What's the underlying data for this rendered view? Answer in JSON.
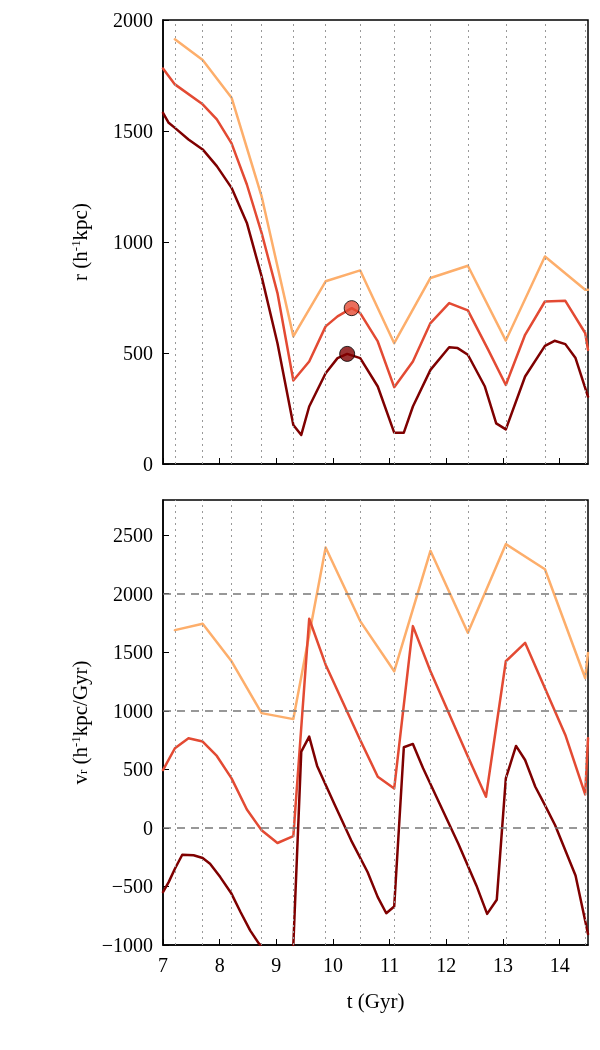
{
  "chart_data": [
    {
      "type": "line",
      "ylabel": "r (h$^{-1}$kpc)",
      "xlim": [
        7,
        14.5
      ],
      "xticks": [
        7,
        8,
        9,
        10,
        11,
        12,
        13,
        14
      ],
      "ylim": [
        0,
        2000
      ],
      "yticks": [
        0,
        500,
        1000,
        1500,
        2000
      ],
      "tick_labels": "y",
      "grid": false,
      "marker": "none",
      "line_style": "solid",
      "series": [
        {
          "color": "#fdae6b",
          "x": [
            7.21,
            7.7,
            8.21,
            8.74,
            9.3,
            9.87,
            10.48,
            11.08,
            11.72,
            12.38,
            13.05,
            13.74,
            14.45,
            14.5
          ],
          "values": [
            1913,
            1820,
            1650,
            1206,
            575,
            823,
            872,
            544,
            838,
            893,
            556,
            935,
            785,
            785
          ]
        },
        {
          "color": "#e34a33",
          "x": [
            7.0,
            7.21,
            7.7,
            7.95,
            8.21,
            8.48,
            8.74,
            9.02,
            9.3,
            9.58,
            9.87,
            10.08,
            10.33,
            10.48,
            10.79,
            11.08,
            11.41,
            11.72,
            12.05,
            12.38,
            12.74,
            13.05,
            13.39,
            13.74,
            14.1,
            14.45,
            14.5
          ],
          "values": [
            1781,
            1710,
            1620,
            1552,
            1444,
            1259,
            1041,
            770,
            376,
            462,
            620,
            665,
            702,
            680,
            552,
            346,
            462,
            635,
            725,
            692,
            514,
            356,
            582,
            732,
            735,
            590,
            514
          ]
        },
        {
          "color": "#7f0000",
          "x": [
            7.0,
            7.1,
            7.21,
            7.45,
            7.7,
            7.95,
            8.21,
            8.48,
            8.74,
            9.02,
            9.3,
            9.44,
            9.58,
            9.87,
            10.08,
            10.25,
            10.48,
            10.79,
            11.08,
            11.25,
            11.41,
            11.72,
            12.05,
            12.2,
            12.38,
            12.68,
            12.88,
            13.05,
            13.39,
            13.74,
            13.91,
            14.1,
            14.28,
            14.5
          ],
          "values": [
            1582,
            1537,
            1514,
            1462,
            1417,
            1342,
            1244,
            1086,
            845,
            544,
            176,
            131,
            259,
            409,
            477,
            496,
            477,
            349,
            141,
            141,
            259,
            424,
            526,
            522,
            492,
            349,
            183,
            156,
            394,
            532,
            555,
            540,
            477,
            304
          ]
        },
        {
          "type": "scatter",
          "marker": "circle",
          "color": "#e34a33",
          "x": [
            10.33
          ],
          "values": [
            702
          ]
        },
        {
          "type": "scatter",
          "marker": "circle",
          "color": "#7f0000",
          "x": [
            10.25
          ],
          "values": [
            496
          ]
        }
      ],
      "ref_lines": [
        {
          "axis": "x",
          "value": 7.21,
          "line_style": "dotted",
          "color": "#999999"
        },
        {
          "axis": "x",
          "value": 7.7,
          "line_style": "dotted",
          "color": "#999999"
        },
        {
          "axis": "x",
          "value": 8.21,
          "line_style": "dotted",
          "color": "#999999"
        },
        {
          "axis": "x",
          "value": 8.74,
          "line_style": "dotted",
          "color": "#999999"
        },
        {
          "axis": "x",
          "value": 9.3,
          "line_style": "dotted",
          "color": "#999999"
        },
        {
          "axis": "x",
          "value": 9.87,
          "line_style": "dotted",
          "color": "#999999"
        },
        {
          "axis": "x",
          "value": 10.48,
          "line_style": "dotted",
          "color": "#999999"
        },
        {
          "axis": "x",
          "value": 11.08,
          "line_style": "dotted",
          "color": "#999999"
        },
        {
          "axis": "x",
          "value": 11.72,
          "line_style": "dotted",
          "color": "#999999"
        },
        {
          "axis": "x",
          "value": 12.38,
          "line_style": "dotted",
          "color": "#999999"
        },
        {
          "axis": "x",
          "value": 13.05,
          "line_style": "dotted",
          "color": "#999999"
        },
        {
          "axis": "x",
          "value": 13.74,
          "line_style": "dotted",
          "color": "#999999"
        },
        {
          "axis": "x",
          "value": 14.45,
          "line_style": "dotted",
          "color": "#999999"
        }
      ]
    },
    {
      "type": "line",
      "xlabel": "t (Gyr)",
      "ylabel": "v$_{r}$ (h$^{-1}$kpc/Gyr)",
      "xlim": [
        7,
        14.5
      ],
      "xticks": [
        7,
        8,
        9,
        10,
        11,
        12,
        13,
        14
      ],
      "ylim": [
        -1000,
        2800
      ],
      "yticks": [
        -1000,
        -500,
        0,
        500,
        1000,
        1500,
        2000,
        2500
      ],
      "grid": false,
      "marker": "none",
      "line_style": "solid",
      "series": [
        {
          "color": "#fdae6b",
          "x": [
            7.21,
            7.7,
            8.21,
            8.74,
            9.3,
            9.87,
            10.48,
            11.08,
            11.72,
            12.38,
            13.05,
            13.74,
            14.45,
            14.5
          ],
          "values": [
            1689,
            1743,
            1423,
            980,
            929,
            2394,
            1766,
            1337,
            2366,
            1666,
            2423,
            2209,
            1280,
            1494
          ]
        },
        {
          "color": "#e34a33",
          "x": [
            7.0,
            7.21,
            7.45,
            7.7,
            7.95,
            8.21,
            8.48,
            8.74,
            9.02,
            9.3,
            9.58,
            9.87,
            10.48,
            10.79,
            11.08,
            11.41,
            11.72,
            12.38,
            12.7,
            13.05,
            13.39,
            14.1,
            14.45,
            14.5
          ],
          "values": [
            494,
            680,
            766,
            737,
            614,
            423,
            157,
            -20,
            -129,
            -71,
            1786,
            1394,
            751,
            437,
            337,
            1723,
            1337,
            609,
            266,
            1423,
            1580,
            794,
            286,
            766
          ]
        },
        {
          "color": "#7f0000",
          "x": [
            7.0,
            7.1,
            7.21,
            7.34,
            7.54,
            7.7,
            7.83,
            8.01,
            8.21,
            8.37,
            8.54,
            8.69,
            8.72,
            9.0,
            9.3,
            9.44,
            9.58,
            9.72,
            10.02,
            10.32,
            10.61,
            10.79,
            10.94,
            11.08,
            11.25,
            11.41,
            11.59,
            11.88,
            12.21,
            12.53,
            12.72,
            12.89,
            13.05,
            13.23,
            13.39,
            13.57,
            13.74,
            13.92,
            14.28,
            14.5
          ],
          "values": [
            -549,
            -463,
            -349,
            -229,
            -234,
            -257,
            -306,
            -420,
            -563,
            -720,
            -877,
            -986,
            -1000,
            null,
            -1000,
            651,
            780,
            529,
            209,
            -106,
            -377,
            -591,
            -729,
            -671,
            689,
            717,
            509,
            209,
            -134,
            -491,
            -734,
            -614,
            423,
            700,
            580,
            351,
            194,
            23,
            -406,
            -906
          ]
        }
      ],
      "ref_lines": [
        {
          "axis": "y",
          "value": 0,
          "line_style": "dashed",
          "color": "#777777"
        },
        {
          "axis": "y",
          "value": 1000,
          "line_style": "dashed",
          "color": "#777777"
        },
        {
          "axis": "y",
          "value": 2000,
          "line_style": "dashed",
          "color": "#777777"
        },
        {
          "axis": "x",
          "value": 7.21,
          "line_style": "dotted",
          "color": "#999999"
        },
        {
          "axis": "x",
          "value": 7.7,
          "line_style": "dotted",
          "color": "#999999"
        },
        {
          "axis": "x",
          "value": 8.21,
          "line_style": "dotted",
          "color": "#999999"
        },
        {
          "axis": "x",
          "value": 8.74,
          "line_style": "dotted",
          "color": "#999999"
        },
        {
          "axis": "x",
          "value": 9.3,
          "line_style": "dotted",
          "color": "#999999"
        },
        {
          "axis": "x",
          "value": 9.87,
          "line_style": "dotted",
          "color": "#999999"
        },
        {
          "axis": "x",
          "value": 10.48,
          "line_style": "dotted",
          "color": "#999999"
        },
        {
          "axis": "x",
          "value": 11.08,
          "line_style": "dotted",
          "color": "#999999"
        },
        {
          "axis": "x",
          "value": 11.72,
          "line_style": "dotted",
          "color": "#999999"
        },
        {
          "axis": "x",
          "value": 12.38,
          "line_style": "dotted",
          "color": "#999999"
        },
        {
          "axis": "x",
          "value": 13.05,
          "line_style": "dotted",
          "color": "#999999"
        },
        {
          "axis": "x",
          "value": 13.74,
          "line_style": "dotted",
          "color": "#999999"
        },
        {
          "axis": "x",
          "value": 14.45,
          "line_style": "dotted",
          "color": "#999999"
        }
      ]
    }
  ]
}
